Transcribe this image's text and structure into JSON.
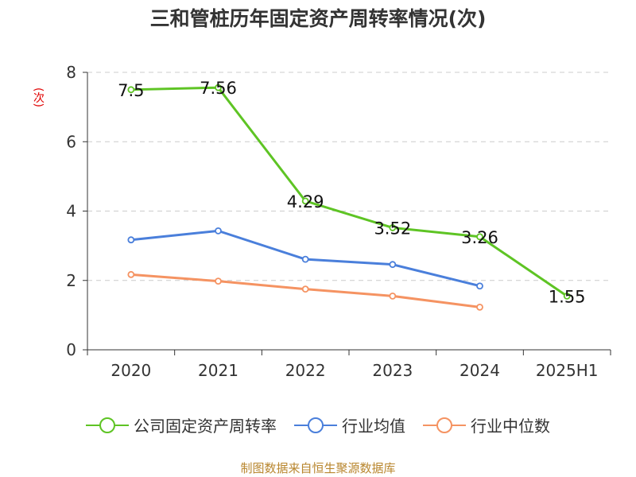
{
  "chart_data": {
    "type": "line",
    "title": "三和管桩历年固定资产周转率情况(次)",
    "ylabel": "(次)",
    "ylim": [
      0,
      8
    ],
    "yticks": [
      0,
      2,
      4,
      6,
      8
    ],
    "grid": true,
    "legend_position": "bottom",
    "categories": [
      "2020",
      "2021",
      "2022",
      "2023",
      "2024",
      "2025H1"
    ],
    "series": [
      {
        "name": "公司固定资产周转率",
        "color": "#5ec424",
        "show_labels": true,
        "values": [
          7.5,
          7.56,
          4.29,
          3.52,
          3.26,
          1.55
        ]
      },
      {
        "name": "行业均值",
        "color": "#4a7fdb",
        "show_labels": false,
        "values": [
          3.17,
          3.43,
          2.61,
          2.46,
          1.84,
          null
        ]
      },
      {
        "name": "行业中位数",
        "color": "#f59362",
        "show_labels": false,
        "values": [
          2.17,
          1.98,
          1.75,
          1.55,
          1.23,
          null
        ]
      }
    ]
  },
  "source": "制图数据来自恒生聚源数据库"
}
